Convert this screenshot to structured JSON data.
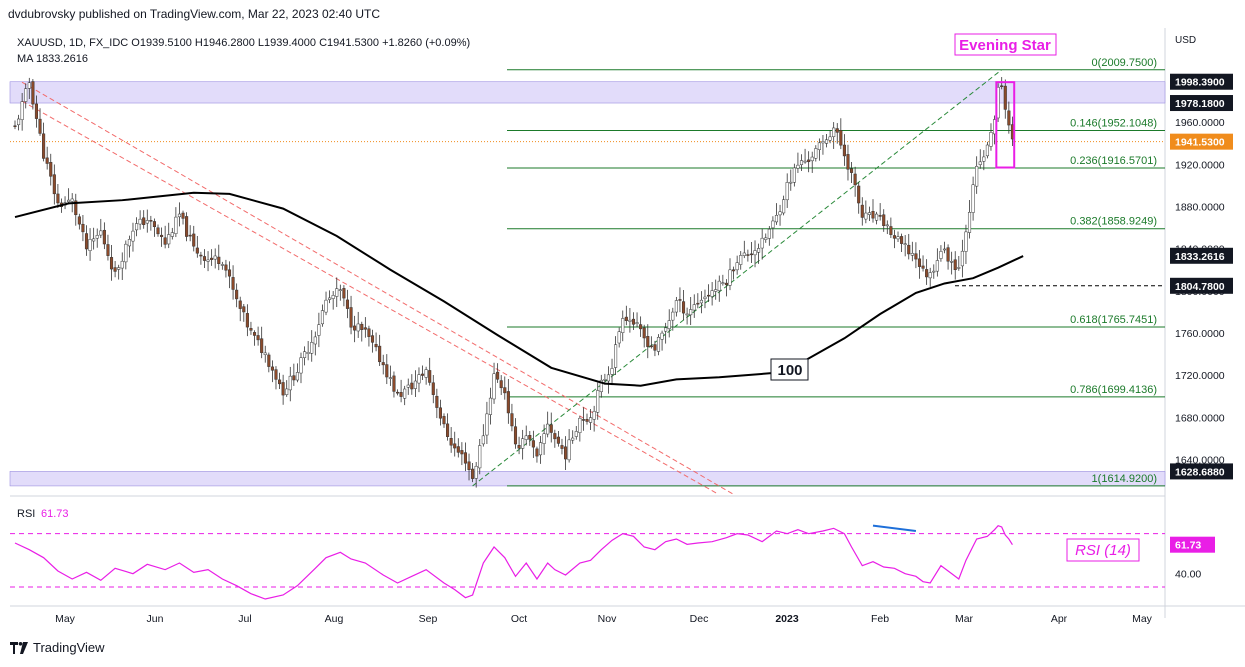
{
  "header": {
    "published_by": "dvdubrovsky published on TradingView.com, Mar 22, 2023 02:40 UTC"
  },
  "legend": {
    "symbol_line": "XAUUSD, 1D, FX_IDC  O1939.5100  H1946.2800  L1939.4000  C1941.5300  +1.8260 (+0.09%)",
    "ma_line": "MA  1833.2616",
    "rsi_label": "RSI",
    "rsi_value": "61.73"
  },
  "annotations": {
    "evening_star": "Evening Star",
    "ma_label": "100",
    "rsi_tag": "RSI (14)"
  },
  "footer": {
    "brand": "TradingView"
  },
  "colors": {
    "up": "#ffffff",
    "down": "#8b4a2b",
    "wick": "#333333",
    "fib": "#1b7a2a",
    "ma": "#000000",
    "downtrend": "#f26b6b",
    "uptrend": "#2a8a3a",
    "zone": "#e2dcfa",
    "zone_border": "#9c8fe0",
    "magenta": "#e91ee6",
    "last_price": "#f08c1c",
    "label_dark": "#131722"
  },
  "chart_data": {
    "type": "candlestick",
    "ylabel": "USD",
    "ylim": [
      1612,
      2019
    ],
    "y_ticks": [
      1640,
      1680,
      1720,
      1760,
      1800,
      1840,
      1880,
      1920,
      1960
    ],
    "y_tick_labels": [
      "1640.0000",
      "1680.0000",
      "1720.0000",
      "1760.0000",
      "1800.0000",
      "1840.0000",
      "1880.0000",
      "1920.0000",
      "1960.0000"
    ],
    "x_ticks": [
      "May",
      "Jun",
      "Jul",
      "Aug",
      "Sep",
      "Oct",
      "Nov",
      "Dec",
      "2023",
      "Feb",
      "Mar",
      "Apr",
      "May"
    ],
    "price_labels": [
      {
        "text": "1998.3900",
        "value": 1998.39,
        "style": "dark"
      },
      {
        "text": "1978.1800",
        "value": 1978.18,
        "style": "dark"
      },
      {
        "text": "1941.5300",
        "value": 1941.53,
        "style": "last"
      },
      {
        "text": "1833.2616",
        "value": 1833.2616,
        "style": "dark"
      },
      {
        "text": "1804.7800",
        "value": 1804.78,
        "style": "dark"
      },
      {
        "text": "1628.6880",
        "value": 1628.688,
        "style": "dark"
      }
    ],
    "fib_levels": [
      {
        "ratio": "0",
        "label": "0(2009.7500)",
        "value": 2009.75
      },
      {
        "ratio": "0.146",
        "label": "0.146(1952.1048)",
        "value": 1952.1048
      },
      {
        "ratio": "0.236",
        "label": "0.236(1916.5701)",
        "value": 1916.5701
      },
      {
        "ratio": "0.382",
        "label": "0.382(1858.9249)",
        "value": 1858.9249
      },
      {
        "ratio": "0.618",
        "label": "0.618(1765.7451)",
        "value": 1765.7451
      },
      {
        "ratio": "0.786",
        "label": "0.786(1699.4136)",
        "value": 1699.4136
      },
      {
        "ratio": "1",
        "label": "1(1614.9200)",
        "value": 1614.92
      }
    ],
    "zones": [
      {
        "from": 1978.18,
        "to": 1998.39
      },
      {
        "from": 1614.92,
        "to": 1628.688
      }
    ],
    "support_level": 1804.78,
    "last_price": 1941.53,
    "price_path": [
      [
        0,
        1955
      ],
      [
        4,
        1998
      ],
      [
        8,
        1930
      ],
      [
        12,
        1882
      ],
      [
        16,
        1885
      ],
      [
        20,
        1840
      ],
      [
        24,
        1856
      ],
      [
        28,
        1815
      ],
      [
        33,
        1860
      ],
      [
        37,
        1868
      ],
      [
        42,
        1845
      ],
      [
        46,
        1872
      ],
      [
        50,
        1840
      ],
      [
        54,
        1830
      ],
      [
        58,
        1830
      ],
      [
        62,
        1790
      ],
      [
        66,
        1760
      ],
      [
        70,
        1740
      ],
      [
        75,
        1705
      ],
      [
        79,
        1725
      ],
      [
        84,
        1760
      ],
      [
        87,
        1790
      ],
      [
        91,
        1800
      ],
      [
        94,
        1770
      ],
      [
        98,
        1760
      ],
      [
        103,
        1730
      ],
      [
        107,
        1700
      ],
      [
        111,
        1710
      ],
      [
        115,
        1725
      ],
      [
        120,
        1670
      ],
      [
        123,
        1650
      ],
      [
        126,
        1640
      ],
      [
        128,
        1622
      ],
      [
        131,
        1665
      ],
      [
        134,
        1720
      ],
      [
        137,
        1705
      ],
      [
        140,
        1650
      ],
      [
        143,
        1665
      ],
      [
        146,
        1640
      ],
      [
        149,
        1675
      ],
      [
        151,
        1660
      ],
      [
        154,
        1645
      ],
      [
        158,
        1680
      ],
      [
        161,
        1680
      ],
      [
        164,
        1712
      ],
      [
        167,
        1730
      ],
      [
        170,
        1778
      ],
      [
        173,
        1770
      ],
      [
        176,
        1755
      ],
      [
        179,
        1745
      ],
      [
        182,
        1765
      ],
      [
        185,
        1790
      ],
      [
        188,
        1780
      ],
      [
        191,
        1790
      ],
      [
        195,
        1800
      ],
      [
        199,
        1810
      ],
      [
        202,
        1830
      ],
      [
        205,
        1835
      ],
      [
        209,
        1845
      ],
      [
        213,
        1870
      ],
      [
        216,
        1900
      ],
      [
        219,
        1920
      ],
      [
        222,
        1925
      ],
      [
        226,
        1940
      ],
      [
        229,
        1955
      ],
      [
        232,
        1930
      ],
      [
        234,
        1910
      ],
      [
        237,
        1870
      ],
      [
        240,
        1870
      ],
      [
        243,
        1865
      ],
      [
        246,
        1850
      ],
      [
        249,
        1840
      ],
      [
        252,
        1832
      ],
      [
        254,
        1818
      ],
      [
        256,
        1815
      ],
      [
        259,
        1840
      ],
      [
        262,
        1828
      ],
      [
        264,
        1822
      ],
      [
        266,
        1860
      ],
      [
        269,
        1915
      ],
      [
        272,
        1935
      ],
      [
        274,
        1965
      ],
      [
        275,
        1990
      ],
      [
        276,
        1992
      ],
      [
        277,
        1975
      ],
      [
        278,
        1958
      ],
      [
        279,
        1942
      ]
    ],
    "ma100_path": [
      [
        0,
        1870
      ],
      [
        15,
        1883
      ],
      [
        30,
        1886
      ],
      [
        50,
        1893
      ],
      [
        60,
        1892
      ],
      [
        75,
        1878
      ],
      [
        90,
        1852
      ],
      [
        105,
        1820
      ],
      [
        120,
        1790
      ],
      [
        135,
        1758
      ],
      [
        150,
        1727
      ],
      [
        165,
        1712
      ],
      [
        175,
        1710
      ],
      [
        185,
        1716
      ],
      [
        197,
        1718
      ],
      [
        212,
        1722
      ],
      [
        220,
        1732
      ],
      [
        232,
        1755
      ],
      [
        242,
        1778
      ],
      [
        252,
        1798
      ],
      [
        260,
        1807
      ],
      [
        268,
        1812
      ],
      [
        275,
        1822
      ],
      [
        282,
        1833
      ]
    ],
    "rsi": {
      "period": 14,
      "value": 61.73,
      "ylim": [
        18,
        96
      ],
      "upper": 70,
      "lower": 30,
      "y_tick_labels": [
        "40.00"
      ],
      "path": [
        [
          0,
          63
        ],
        [
          4,
          58
        ],
        [
          8,
          52
        ],
        [
          12,
          42
        ],
        [
          16,
          36
        ],
        [
          20,
          41
        ],
        [
          24,
          35
        ],
        [
          28,
          44
        ],
        [
          33,
          40
        ],
        [
          37,
          47
        ],
        [
          42,
          43
        ],
        [
          46,
          48
        ],
        [
          50,
          41
        ],
        [
          54,
          43
        ],
        [
          58,
          36
        ],
        [
          62,
          31
        ],
        [
          66,
          25
        ],
        [
          70,
          21
        ],
        [
          75,
          24
        ],
        [
          79,
          31
        ],
        [
          84,
          44
        ],
        [
          87,
          52
        ],
        [
          91,
          56
        ],
        [
          94,
          51
        ],
        [
          98,
          48
        ],
        [
          103,
          39
        ],
        [
          107,
          33
        ],
        [
          111,
          38
        ],
        [
          115,
          43
        ],
        [
          120,
          33
        ],
        [
          123,
          28
        ],
        [
          126,
          22
        ],
        [
          128,
          24
        ],
        [
          131,
          48
        ],
        [
          134,
          60
        ],
        [
          137,
          52
        ],
        [
          140,
          38
        ],
        [
          143,
          48
        ],
        [
          146,
          36
        ],
        [
          149,
          48
        ],
        [
          151,
          43
        ],
        [
          154,
          39
        ],
        [
          158,
          48
        ],
        [
          161,
          50
        ],
        [
          164,
          58
        ],
        [
          167,
          65
        ],
        [
          170,
          70
        ],
        [
          173,
          68
        ],
        [
          176,
          60
        ],
        [
          179,
          58
        ],
        [
          182,
          64
        ],
        [
          185,
          66
        ],
        [
          188,
          62
        ],
        [
          191,
          63
        ],
        [
          195,
          64
        ],
        [
          199,
          67
        ],
        [
          202,
          70
        ],
        [
          205,
          69
        ],
        [
          209,
          64
        ],
        [
          213,
          72
        ],
        [
          216,
          70
        ],
        [
          219,
          73
        ],
        [
          222,
          70
        ],
        [
          226,
          72
        ],
        [
          229,
          74
        ],
        [
          232,
          70
        ],
        [
          234,
          60
        ],
        [
          237,
          46
        ],
        [
          240,
          49
        ],
        [
          243,
          45
        ],
        [
          246,
          44
        ],
        [
          249,
          40
        ],
        [
          252,
          38
        ],
        [
          254,
          34
        ],
        [
          256,
          33
        ],
        [
          259,
          46
        ],
        [
          262,
          40
        ],
        [
          264,
          36
        ],
        [
          266,
          50
        ],
        [
          269,
          66
        ],
        [
          272,
          68
        ],
        [
          274,
          73
        ],
        [
          275,
          76
        ],
        [
          276,
          75
        ],
        [
          277,
          69
        ],
        [
          278,
          66
        ],
        [
          279,
          61.73
        ]
      ]
    }
  }
}
